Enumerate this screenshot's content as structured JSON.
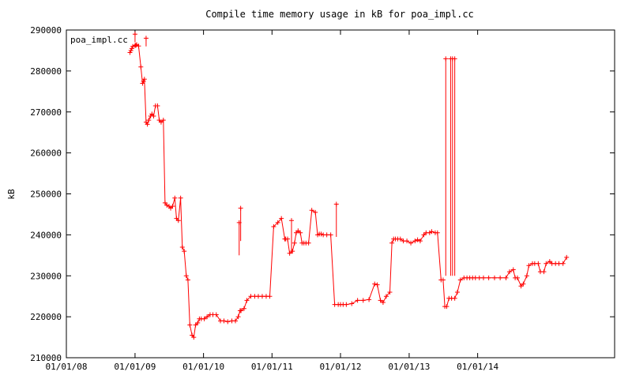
{
  "chart_data": {
    "type": "line",
    "title": "Compile time memory usage in kB for poa_impl.cc",
    "xlabel": "",
    "ylabel": "kB",
    "legend": "top-left",
    "legend_label": "poa_impl.cc",
    "grid": false,
    "marker": "plus",
    "color": "#ff0000",
    "xlim": [
      "2008-01-01",
      "2016-01-01"
    ],
    "ylim": [
      210000,
      290000
    ],
    "x_ticks": [
      {
        "date": "2008-01-01",
        "label": "01/01/08"
      },
      {
        "date": "2009-01-01",
        "label": "01/01/09"
      },
      {
        "date": "2010-01-01",
        "label": "01/01/10"
      },
      {
        "date": "2011-01-01",
        "label": "01/01/11"
      },
      {
        "date": "2012-01-01",
        "label": "01/01/12"
      },
      {
        "date": "2013-01-01",
        "label": "01/01/13"
      },
      {
        "date": "2014-01-01",
        "label": "01/01/14"
      }
    ],
    "y_ticks": [
      210000,
      220000,
      230000,
      240000,
      250000,
      260000,
      270000,
      280000,
      290000
    ],
    "y_tick_labels": [
      "210000",
      "220000",
      "230000",
      "240000",
      "250000",
      "260000",
      "270000",
      "280000",
      "290000"
    ],
    "series": [
      {
        "name": "poa_impl.cc",
        "x": [
          "2008-12-05",
          "2008-12-10",
          "2008-12-15",
          "2008-12-20",
          "2009-01-01",
          "2009-01-05",
          "2009-01-10",
          "2009-01-20",
          "2009-02-01",
          "2009-02-10",
          "2009-02-15",
          "2009-02-20",
          "2009-03-01",
          "2009-03-08",
          "2009-03-15",
          "2009-03-25",
          "2009-04-01",
          "2009-04-10",
          "2009-04-20",
          "2009-05-01",
          "2009-05-10",
          "2009-05-20",
          "2009-06-01",
          "2009-06-10",
          "2009-06-20",
          "2009-07-01",
          "2009-07-10",
          "2009-07-20",
          "2009-08-01",
          "2009-08-10",
          "2009-08-20",
          "2009-09-01",
          "2009-09-10",
          "2009-09-20",
          "2009-10-01",
          "2009-10-10",
          "2009-10-20",
          "2009-11-01",
          "2009-11-10",
          "2009-11-20",
          "2009-12-01",
          "2009-12-10",
          "2009-12-20",
          "2010-01-05",
          "2010-01-20",
          "2010-02-05",
          "2010-02-20",
          "2010-03-10",
          "2010-04-01",
          "2010-04-20",
          "2010-05-10",
          "2010-06-01",
          "2010-06-20",
          "2010-07-05",
          "2010-07-15",
          "2010-07-20",
          "2010-08-05",
          "2010-08-20",
          "2010-09-10",
          "2010-10-01",
          "2010-10-20",
          "2010-11-10",
          "2010-12-01",
          "2010-12-20",
          "2011-01-10",
          "2011-02-01",
          "2011-02-20",
          "2011-03-10",
          "2011-03-15",
          "2011-03-25",
          "2011-04-05",
          "2011-04-20",
          "2011-05-01",
          "2011-05-10",
          "2011-05-20",
          "2011-06-01",
          "2011-06-10",
          "2011-06-20",
          "2011-07-01",
          "2011-07-15",
          "2011-08-01",
          "2011-08-20",
          "2011-09-01",
          "2011-09-10",
          "2011-09-20",
          "2011-10-01",
          "2011-10-20",
          "2011-11-10",
          "2011-12-01",
          "2011-12-20",
          "2012-01-01",
          "2012-01-15",
          "2012-02-01",
          "2012-03-01",
          "2012-04-01",
          "2012-05-01",
          "2012-06-01",
          "2012-07-01",
          "2012-07-15",
          "2012-08-01",
          "2012-08-15",
          "2012-09-01",
          "2012-09-20",
          "2012-10-01",
          "2012-10-10",
          "2012-10-20",
          "2012-11-01",
          "2012-11-15",
          "2012-12-01",
          "2012-12-20",
          "2013-01-10",
          "2013-02-01",
          "2013-02-15",
          "2013-03-01",
          "2013-03-20",
          "2013-04-01",
          "2013-04-20",
          "2013-05-01",
          "2013-05-20",
          "2013-06-01",
          "2013-06-20",
          "2013-07-01",
          "2013-07-10",
          "2013-07-20",
          "2013-08-01",
          "2013-08-15",
          "2013-09-01",
          "2013-09-15",
          "2013-10-01",
          "2013-10-20",
          "2013-11-05",
          "2013-11-20",
          "2013-12-05",
          "2013-12-20",
          "2014-01-10",
          "2014-02-01",
          "2014-03-01",
          "2014-04-01",
          "2014-05-01",
          "2014-06-01",
          "2014-06-20",
          "2014-07-10",
          "2014-07-20",
          "2014-08-01",
          "2014-08-20",
          "2014-09-01",
          "2014-09-20",
          "2014-10-01",
          "2014-10-20",
          "2014-11-01",
          "2014-11-20",
          "2014-12-01",
          "2014-12-20",
          "2015-01-01",
          "2015-01-20",
          "2015-02-01",
          "2015-02-20",
          "2015-03-10",
          "2015-04-01",
          "2015-04-20"
        ],
        "y": [
          284500,
          285000,
          285500,
          286000,
          286200,
          286300,
          286400,
          286100,
          281000,
          277000,
          277500,
          278000,
          267500,
          267000,
          268000,
          269000,
          269500,
          269000,
          271500,
          271500,
          268000,
          267500,
          268000,
          247800,
          247200,
          247000,
          246500,
          247000,
          249000,
          244000,
          243500,
          249000,
          237000,
          236000,
          230000,
          229000,
          218000,
          215500,
          215000,
          218000,
          218500,
          219500,
          219500,
          219500,
          220000,
          220500,
          220500,
          220500,
          219000,
          219000,
          218800,
          219000,
          219000,
          220000,
          221500,
          221500,
          222000,
          224000,
          225000,
          225000,
          225000,
          225000,
          225000,
          225000,
          242000,
          243000,
          244000,
          239000,
          239000,
          239000,
          235500,
          236000,
          238000,
          240500,
          241000,
          240500,
          238000,
          238000,
          238000,
          238000,
          246000,
          245500,
          240000,
          240200,
          240200,
          240000,
          240000,
          240000,
          223000,
          223000,
          223000,
          223000,
          223000,
          223200,
          224000,
          224000,
          224200,
          228000,
          227800,
          224000,
          223500,
          225000,
          226000,
          238000,
          239000,
          239000,
          239000,
          239000,
          238500,
          238500,
          238000,
          238500,
          238800,
          238500,
          240000,
          240500,
          240500,
          240800,
          240500,
          240500,
          229000,
          229000,
          222500,
          222500,
          224500,
          224500,
          224500,
          226000,
          229000,
          229500,
          229500,
          229500,
          229500,
          229500,
          229500,
          229500,
          229500,
          229500,
          229500,
          229500,
          231000,
          231500,
          229500,
          229500,
          227500,
          228000,
          230000,
          232500,
          233000,
          233000,
          233000,
          231000,
          231000,
          233000,
          233500,
          233000,
          233000,
          233000,
          233000,
          234500
        ]
      }
    ],
    "spikes": [
      {
        "x": "2013-07-15",
        "y": 283000
      },
      {
        "x": "2013-08-10",
        "y": 283000
      },
      {
        "x": "2013-08-20",
        "y": 283000
      },
      {
        "x": "2013-09-01",
        "y": 283000
      },
      {
        "x": "2010-07-18",
        "y": 246500
      },
      {
        "x": "2010-07-10",
        "y": 243000
      },
      {
        "x": "2011-04-15",
        "y": 243500
      },
      {
        "x": "2011-12-10",
        "y": 247500
      },
      {
        "x": "2009-01-01",
        "y": 289000
      },
      {
        "x": "2009-03-01",
        "y": 288000
      }
    ]
  }
}
